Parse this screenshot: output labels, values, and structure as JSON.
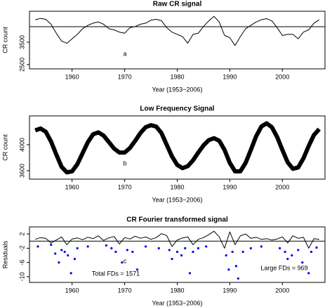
{
  "chart_data": [
    {
      "type": "line",
      "title": "Raw CR signal",
      "xlabel": "Year (1953−2006)",
      "ylabel": "CR count",
      "annotations": [
        "a"
      ],
      "xlim": [
        1951.9,
        2008.1
      ],
      "xticks": [
        1960,
        1970,
        1980,
        1990,
        2000
      ],
      "ylim": [
        2310,
        4880
      ],
      "yticks": [
        2500,
        3500
      ],
      "hline": 4190,
      "series": [
        {
          "type": "line",
          "color": "#000000",
          "width": 1,
          "x": [
            1953,
            1954,
            1955,
            1956,
            1957,
            1958,
            1959,
            1960,
            1961,
            1962,
            1963,
            1964,
            1965,
            1966,
            1967,
            1968,
            1969,
            1970,
            1971,
            1972,
            1973,
            1974,
            1975,
            1976,
            1977,
            1978,
            1979,
            1980,
            1981,
            1982,
            1983,
            1984,
            1985,
            1986,
            1987,
            1988,
            1989,
            1990,
            1991,
            1992,
            1993,
            1994,
            1995,
            1996,
            1997,
            1998,
            1999,
            2000,
            2001,
            2002,
            2003,
            2004,
            2005,
            2006,
            2007
          ],
          "values": [
            4500,
            4560,
            4520,
            4300,
            3900,
            3550,
            3450,
            3650,
            3850,
            4100,
            4250,
            4350,
            4400,
            4300,
            4100,
            4050,
            3950,
            3900,
            4150,
            4200,
            4300,
            4350,
            4480,
            4520,
            4460,
            4150,
            3950,
            3850,
            3750,
            3450,
            3850,
            3900,
            4200,
            4450,
            4650,
            4400,
            3800,
            3700,
            3350,
            3750,
            4100,
            4250,
            4400,
            4500,
            4550,
            4450,
            4150,
            3800,
            3850,
            3850,
            3650,
            3950,
            4050,
            4350,
            4500
          ]
        }
      ]
    },
    {
      "type": "line",
      "title": "Low Frequency Signal",
      "xlabel": "Year (1953−2006)",
      "ylabel": "CR count",
      "annotations": [
        "b"
      ],
      "xlim": [
        1951.9,
        2008.1
      ],
      "xticks": [
        1960,
        1970,
        1980,
        1990,
        2000
      ],
      "ylim": [
        3470,
        4443
      ],
      "yticks": [
        3600,
        4000
      ],
      "series": [
        {
          "type": "line",
          "color": "#000000",
          "width": 6,
          "x": [
            1953,
            1954,
            1955,
            1956,
            1957,
            1958,
            1959,
            1960,
            1961,
            1962,
            1963,
            1964,
            1965,
            1966,
            1967,
            1968,
            1969,
            1970,
            1971,
            1972,
            1973,
            1974,
            1975,
            1976,
            1977,
            1978,
            1979,
            1980,
            1981,
            1982,
            1983,
            1984,
            1985,
            1986,
            1987,
            1988,
            1989,
            1990,
            1991,
            1992,
            1993,
            1994,
            1995,
            1996,
            1997,
            1998,
            1999,
            2000,
            2001,
            2002,
            2003,
            2004,
            2005,
            2006,
            2007
          ],
          "values": [
            4220,
            4250,
            4200,
            4050,
            3850,
            3660,
            3575,
            3590,
            3700,
            3870,
            4040,
            4160,
            4190,
            4140,
            4040,
            3940,
            3880,
            3880,
            3950,
            4060,
            4180,
            4270,
            4300,
            4280,
            4180,
            4000,
            3820,
            3690,
            3640,
            3670,
            3760,
            3880,
            3990,
            4070,
            4100,
            4060,
            3920,
            3720,
            3590,
            3590,
            3720,
            3920,
            4130,
            4280,
            4330,
            4270,
            4120,
            3920,
            3730,
            3630,
            3650,
            3790,
            3980,
            4150,
            4240
          ]
        }
      ]
    },
    {
      "type": "line",
      "title": "CR Fourier transformed signal",
      "xlabel": "Year (1953−2006)",
      "ylabel": "Residuals",
      "annotations": [
        "c",
        "Total FDs = 1571",
        "Large FDs = 969"
      ],
      "xlim": [
        1951.9,
        2008.1
      ],
      "xticks": [
        1960,
        1970,
        1980,
        1990,
        2000
      ],
      "ylim": [
        -11.6,
        4
      ],
      "yticks": [
        -10,
        -6,
        -2,
        2
      ],
      "hline": 0,
      "series": [
        {
          "type": "line",
          "color": "#000000",
          "width": 1,
          "x": [
            1953,
            1954,
            1955,
            1956,
            1957,
            1958,
            1959,
            1960,
            1961,
            1962,
            1963,
            1964,
            1965,
            1966,
            1967,
            1968,
            1969,
            1970,
            1971,
            1972,
            1973,
            1974,
            1975,
            1976,
            1977,
            1978,
            1979,
            1980,
            1981,
            1982,
            1983,
            1984,
            1985,
            1986,
            1987,
            1988,
            1989,
            1990,
            1991,
            1992,
            1993,
            1994,
            1995,
            1996,
            1997,
            1998,
            1999,
            2000,
            2001,
            2002,
            2003,
            2004,
            2005,
            2006,
            2007
          ],
          "values": [
            0.5,
            1,
            0.8,
            -0.5,
            0.3,
            1.2,
            -1,
            0.6,
            0.9,
            0.4,
            1.1,
            0.7,
            1.5,
            0.2,
            0.9,
            1.3,
            -0.8,
            1.0,
            0.6,
            1.4,
            0.8,
            1.2,
            0.5,
            1.0,
            2.1,
            1.6,
            -1.5,
            0.3,
            0.9,
            1.2,
            -1,
            0.5,
            1.0,
            1.8,
            2.8,
            1.2,
            -2,
            2.6,
            -1,
            1.5,
            2,
            0.8,
            1.1,
            0.5,
            0.7,
            0.3,
            0.6,
            1.2,
            -0.5,
            1.5,
            0.8,
            1.1,
            -2,
            0.7,
            0.5
          ]
        },
        {
          "type": "scatter",
          "color": "#0000ee",
          "x": [
            1953.5,
            1956,
            1956.8,
            1957.5,
            1958,
            1958.6,
            1959.2,
            1959.8,
            1960.5,
            1961,
            1963,
            1966.5,
            1967.5,
            1968.3,
            1969.5,
            1970.5,
            1971.5,
            1972.4,
            1974,
            1976.5,
            1978.5,
            1979,
            1980,
            1980.8,
            1981.5,
            1982.4,
            1983,
            1984,
            1985.5,
            1989.3,
            1989.8,
            1990.5,
            1991.2,
            1991.6,
            1992.5,
            1994,
            1996,
            1999.5,
            2000.5,
            2001,
            2001.8,
            2003,
            2003.8,
            2005,
            2005.5,
            2006.5
          ],
          "values": [
            -1.5,
            -1,
            -3.5,
            -6,
            -2.5,
            -3,
            -4,
            -9,
            -5,
            -2,
            -1.5,
            -1.2,
            -2,
            -3,
            -6,
            -2.5,
            -3,
            -8,
            -1.5,
            -2,
            -2.5,
            -5,
            -3,
            -4,
            -2,
            -9,
            -3,
            -2,
            -1.5,
            -4,
            -8,
            -3,
            -7,
            -10.5,
            -3,
            -2,
            -1.5,
            -2,
            -3,
            -5,
            -4,
            -2.5,
            -6,
            -9,
            -3,
            -1.8
          ]
        }
      ]
    }
  ]
}
